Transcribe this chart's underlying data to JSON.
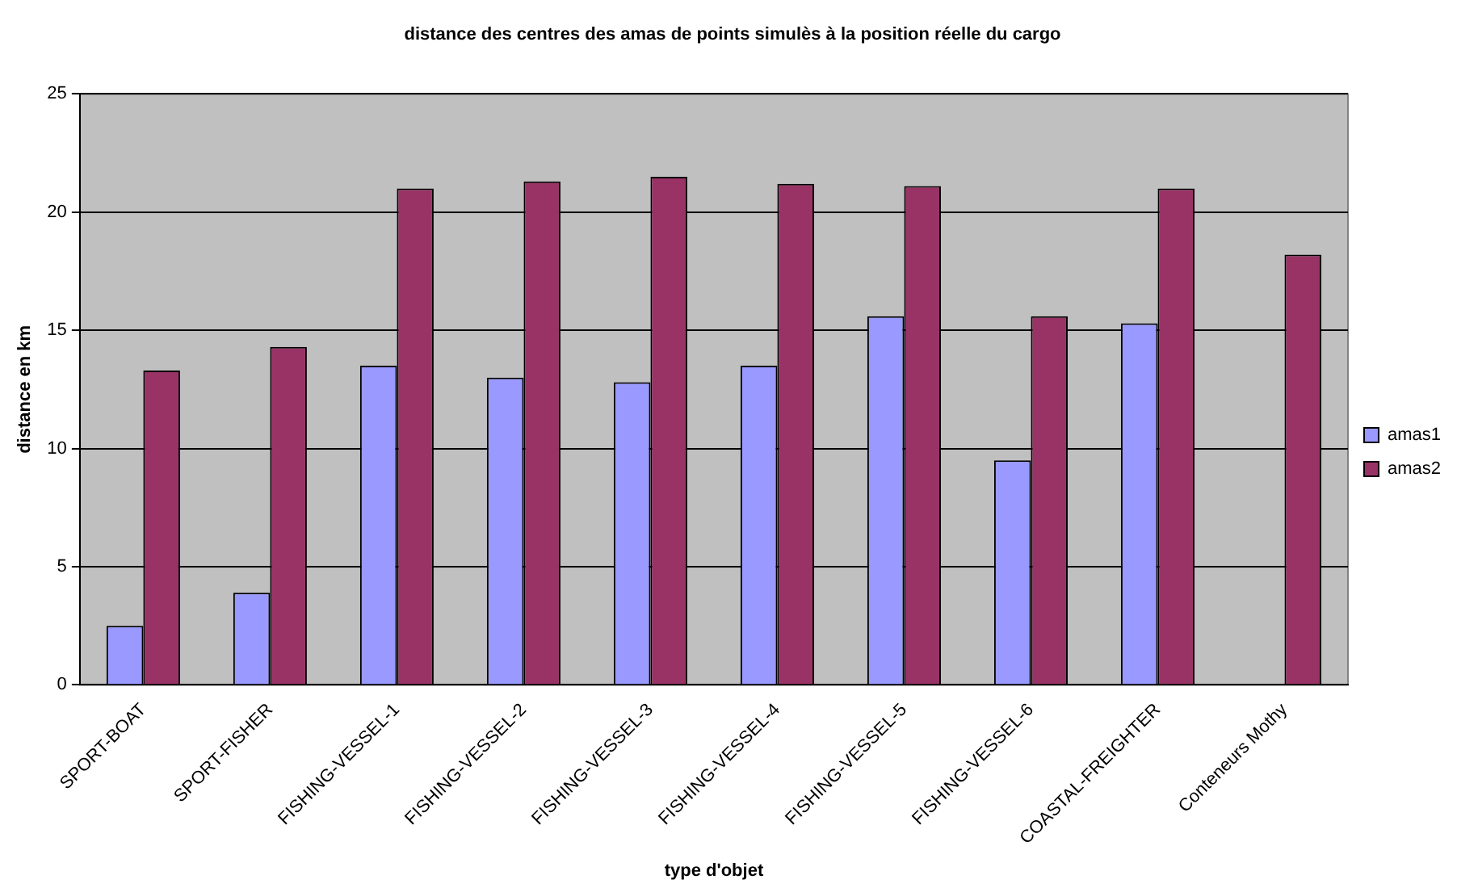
{
  "chart_data": {
    "type": "bar",
    "title": "distance des centres des amas de points simulès à la position réelle du cargo",
    "xlabel": "type d'objet",
    "ylabel": "distance en km",
    "categories": [
      "SPORT-BOAT",
      "SPORT-FISHER",
      "FISHING-VESSEL-1",
      "FISHING-VESSEL-2",
      "FISHING-VESSEL-3",
      "FISHING-VESSEL-4",
      "FISHING-VESSEL-5",
      "FISHING-VESSEL-6",
      "COASTAL-FREIGHTER",
      "Conteneurs Mothy"
    ],
    "series": [
      {
        "name": "amas1",
        "color": "#9999ff",
        "values": [
          2.5,
          3.9,
          13.5,
          13.0,
          12.8,
          13.5,
          15.6,
          9.5,
          15.3,
          null
        ]
      },
      {
        "name": "amas2",
        "color": "#993366",
        "values": [
          13.3,
          14.3,
          21.0,
          21.3,
          21.5,
          21.2,
          21.1,
          15.6,
          21.0,
          18.2
        ]
      }
    ],
    "ylim": [
      0,
      25
    ],
    "yticks": [
      0,
      5,
      10,
      15,
      20,
      25
    ],
    "grid": "y",
    "legend": "right"
  }
}
